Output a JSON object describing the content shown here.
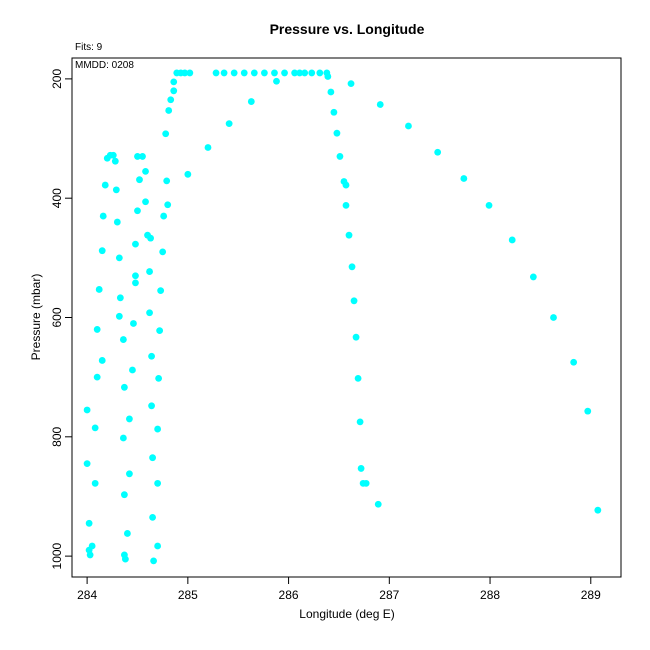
{
  "chart_data": {
    "type": "scatter",
    "title": "Pressure vs. Longitude",
    "xlabel": "Longitude (deg E)",
    "ylabel": "Pressure (mbar)",
    "xlim": [
      283.85,
      289.3
    ],
    "ylim": [
      1035,
      165
    ],
    "y_inverted": true,
    "xticks": [
      284,
      285,
      286,
      287,
      288,
      289
    ],
    "yticks": [
      200,
      400,
      600,
      800,
      1000
    ],
    "grid": false,
    "color": "#00FFFF",
    "annotations": {
      "fits": "Fits: 9",
      "mmdd": "MMDD: 0208"
    },
    "series": [
      {
        "values": [
          [
            284.03,
            998
          ],
          [
            284.02,
            990
          ],
          [
            284.05,
            983
          ],
          [
            284.02,
            945
          ],
          [
            284.0,
            845
          ],
          [
            284.08,
            878
          ],
          [
            284.0,
            755
          ],
          [
            284.08,
            785
          ],
          [
            284.1,
            700
          ],
          [
            284.1,
            620
          ],
          [
            284.15,
            672
          ],
          [
            284.12,
            553
          ],
          [
            284.15,
            488
          ],
          [
            284.16,
            430
          ],
          [
            284.18,
            378
          ],
          [
            284.2,
            333
          ],
          [
            284.23,
            328
          ],
          [
            284.26,
            328
          ],
          [
            284.28,
            338
          ]
        ]
      },
      {
        "values": [
          [
            284.38,
            1005
          ],
          [
            284.37,
            998
          ],
          [
            284.4,
            962
          ],
          [
            284.37,
            897
          ],
          [
            284.42,
            862
          ],
          [
            284.36,
            802
          ],
          [
            284.42,
            770
          ],
          [
            284.37,
            717
          ],
          [
            284.45,
            688
          ],
          [
            284.36,
            637
          ],
          [
            284.46,
            610
          ],
          [
            284.32,
            598
          ],
          [
            284.33,
            567
          ],
          [
            284.48,
            542
          ],
          [
            284.48,
            530
          ],
          [
            284.32,
            500
          ],
          [
            284.48,
            477
          ],
          [
            284.3,
            440
          ],
          [
            284.5,
            421
          ],
          [
            284.29,
            386
          ],
          [
            284.52,
            369
          ],
          [
            284.5,
            330
          ],
          [
            284.55,
            330
          ],
          [
            284.58,
            355
          ]
        ]
      },
      {
        "values": [
          [
            284.66,
            1008
          ],
          [
            284.7,
            983
          ],
          [
            284.65,
            935
          ],
          [
            284.7,
            878
          ],
          [
            284.65,
            835
          ],
          [
            284.7,
            787
          ],
          [
            284.64,
            748
          ],
          [
            284.71,
            702
          ],
          [
            284.64,
            665
          ],
          [
            284.72,
            622
          ],
          [
            284.62,
            592
          ],
          [
            284.73,
            555
          ],
          [
            284.62,
            523
          ],
          [
            284.6,
            462
          ],
          [
            284.63,
            467
          ],
          [
            284.75,
            490
          ],
          [
            284.58,
            406
          ],
          [
            284.76,
            430
          ],
          [
            284.8,
            411
          ],
          [
            284.79,
            371
          ],
          [
            284.78,
            292
          ],
          [
            284.81,
            253
          ],
          [
            284.83,
            235
          ],
          [
            284.86,
            220
          ],
          [
            284.86,
            205
          ],
          [
            284.89,
            190
          ],
          [
            284.93,
            190
          ],
          [
            284.97,
            190
          ],
          [
            285.02,
            190
          ]
        ]
      },
      {
        "values": [
          [
            285.0,
            360
          ],
          [
            285.2,
            315
          ],
          [
            285.41,
            275
          ],
          [
            285.63,
            238
          ],
          [
            285.88,
            204
          ],
          [
            285.28,
            190
          ],
          [
            285.36,
            190
          ],
          [
            285.46,
            190
          ],
          [
            285.56,
            190
          ],
          [
            285.66,
            190
          ],
          [
            285.76,
            190
          ],
          [
            285.86,
            190
          ],
          [
            285.96,
            190
          ],
          [
            286.06,
            190
          ],
          [
            286.11,
            190
          ],
          [
            286.16,
            190
          ],
          [
            286.23,
            190
          ],
          [
            286.31,
            190
          ],
          [
            286.38,
            190
          ],
          [
            286.39,
            196
          ]
        ]
      },
      {
        "values": [
          [
            286.42,
            222
          ],
          [
            286.45,
            256
          ],
          [
            286.48,
            291
          ],
          [
            286.51,
            330
          ],
          [
            286.55,
            372
          ],
          [
            286.57,
            378
          ],
          [
            286.57,
            412
          ],
          [
            286.6,
            462
          ],
          [
            286.63,
            515
          ],
          [
            286.65,
            572
          ],
          [
            286.67,
            633
          ],
          [
            286.69,
            702
          ],
          [
            286.71,
            775
          ],
          [
            286.72,
            853
          ],
          [
            286.74,
            878
          ],
          [
            286.77,
            878
          ],
          [
            286.89,
            913
          ]
        ]
      },
      {
        "values": [
          [
            286.62,
            208
          ],
          [
            286.91,
            243
          ],
          [
            287.19,
            279
          ],
          [
            287.48,
            323
          ],
          [
            287.74,
            367
          ],
          [
            287.99,
            412
          ],
          [
            288.22,
            470
          ],
          [
            288.43,
            532
          ],
          [
            288.63,
            600
          ],
          [
            288.83,
            675
          ],
          [
            288.97,
            757
          ],
          [
            289.07,
            923
          ]
        ]
      }
    ]
  }
}
